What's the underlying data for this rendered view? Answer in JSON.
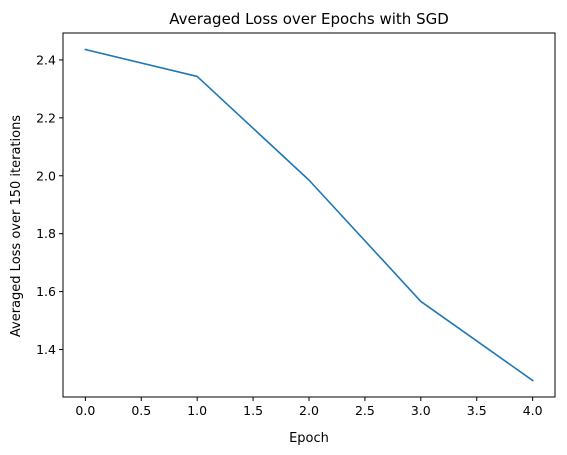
{
  "chart_data": {
    "type": "line",
    "title": "Averaged Loss over Epochs with SGD",
    "xlabel": "Epoch",
    "ylabel": "Averaged Loss over 150 iterations",
    "x": [
      0,
      1,
      2,
      3,
      4
    ],
    "series": [
      {
        "values": [
          2.436,
          2.343,
          1.985,
          1.566,
          1.293
        ],
        "color": "#1f77b4"
      }
    ],
    "xlim": [
      -0.2,
      4.2
    ],
    "ylim": [
      1.236,
      2.493
    ],
    "xticks": [
      "0.0",
      "0.5",
      "1.0",
      "1.5",
      "2.0",
      "2.5",
      "3.0",
      "3.5",
      "4.0"
    ],
    "yticks": [
      "1.4",
      "1.6",
      "1.8",
      "2.0",
      "2.2",
      "2.4"
    ],
    "grid": false,
    "legend": "none"
  }
}
